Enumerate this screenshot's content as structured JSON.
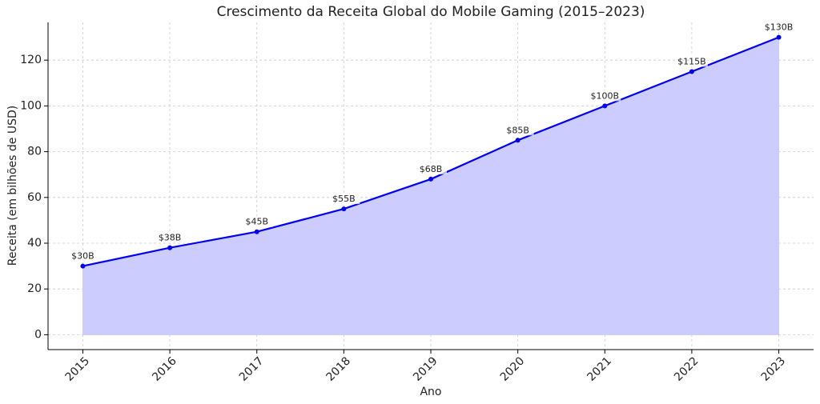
{
  "chart_data": {
    "type": "area-line",
    "title": "Crescimento da Receita Global do Mobile Gaming (2015–2023)",
    "x_label": "Ano",
    "y_label": "Receita (em bilhões de USD)",
    "x": [
      2015,
      2016,
      2017,
      2018,
      2019,
      2020,
      2021,
      2022,
      2023
    ],
    "values": [
      30,
      38,
      45,
      55,
      68,
      85,
      100,
      115,
      130
    ],
    "value_labels": [
      "$30B",
      "$38B",
      "$45B",
      "$55B",
      "$68B",
      "$85B",
      "$100B",
      "$115B",
      "$130B"
    ],
    "color": "#0000ee",
    "fill_color": "#ccccff",
    "xlim": [
      2014.6,
      2023.4
    ],
    "xticks": [
      2015,
      2016,
      2017,
      2018,
      2019,
      2020,
      2021,
      2022,
      2023
    ],
    "ylim": [
      -6.5,
      136.5
    ],
    "yticks": [
      0,
      20,
      40,
      60,
      80,
      100,
      120
    ],
    "grid": true
  }
}
